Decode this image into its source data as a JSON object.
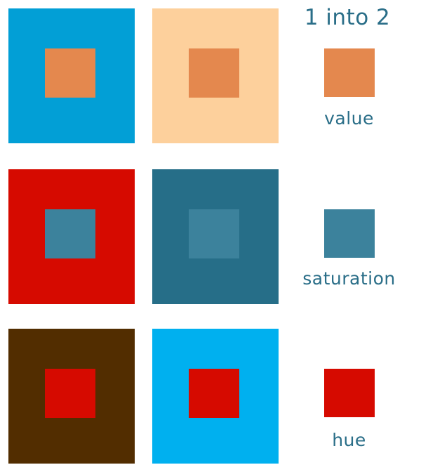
{
  "title": "1 into 2",
  "colors": {
    "blue": "#029fd6",
    "peach": "#fdd09c",
    "orange": "#e4884e",
    "red": "#d60a00",
    "teal_dark": "#266e88",
    "teal_mid": "#3c829c",
    "brown": "#522d00",
    "sky": "#00b0ef",
    "label_text": "#2a6e88"
  },
  "rows": [
    {
      "name": "value",
      "label": "value",
      "left": {
        "outer": "blue",
        "inner": "orange"
      },
      "right": {
        "outer": "peach",
        "inner": "orange"
      },
      "reference": "orange"
    },
    {
      "name": "saturation",
      "label": "saturation",
      "left": {
        "outer": "red",
        "inner": "teal_mid"
      },
      "right": {
        "outer": "teal_dark",
        "inner": "teal_mid"
      },
      "reference": "teal_mid"
    },
    {
      "name": "hue",
      "label": "hue",
      "left": {
        "outer": "brown",
        "inner": "red"
      },
      "right": {
        "outer": "sky",
        "inner": "red"
      },
      "reference": "red"
    }
  ]
}
